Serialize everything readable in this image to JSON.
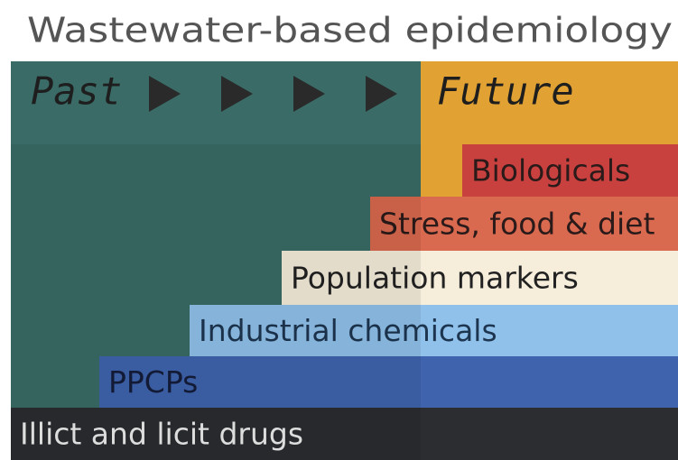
{
  "title": "Wastewater-based epidemiology",
  "timeline": {
    "past": "Past",
    "future": "Future"
  },
  "layers": [
    {
      "label": "Biologicals"
    },
    {
      "label": "Stress, food & diet"
    },
    {
      "label": "Population markers"
    },
    {
      "label": "Industrial chemicals"
    },
    {
      "label": "PPCPs"
    },
    {
      "label": "Illict and licit drugs"
    }
  ]
}
